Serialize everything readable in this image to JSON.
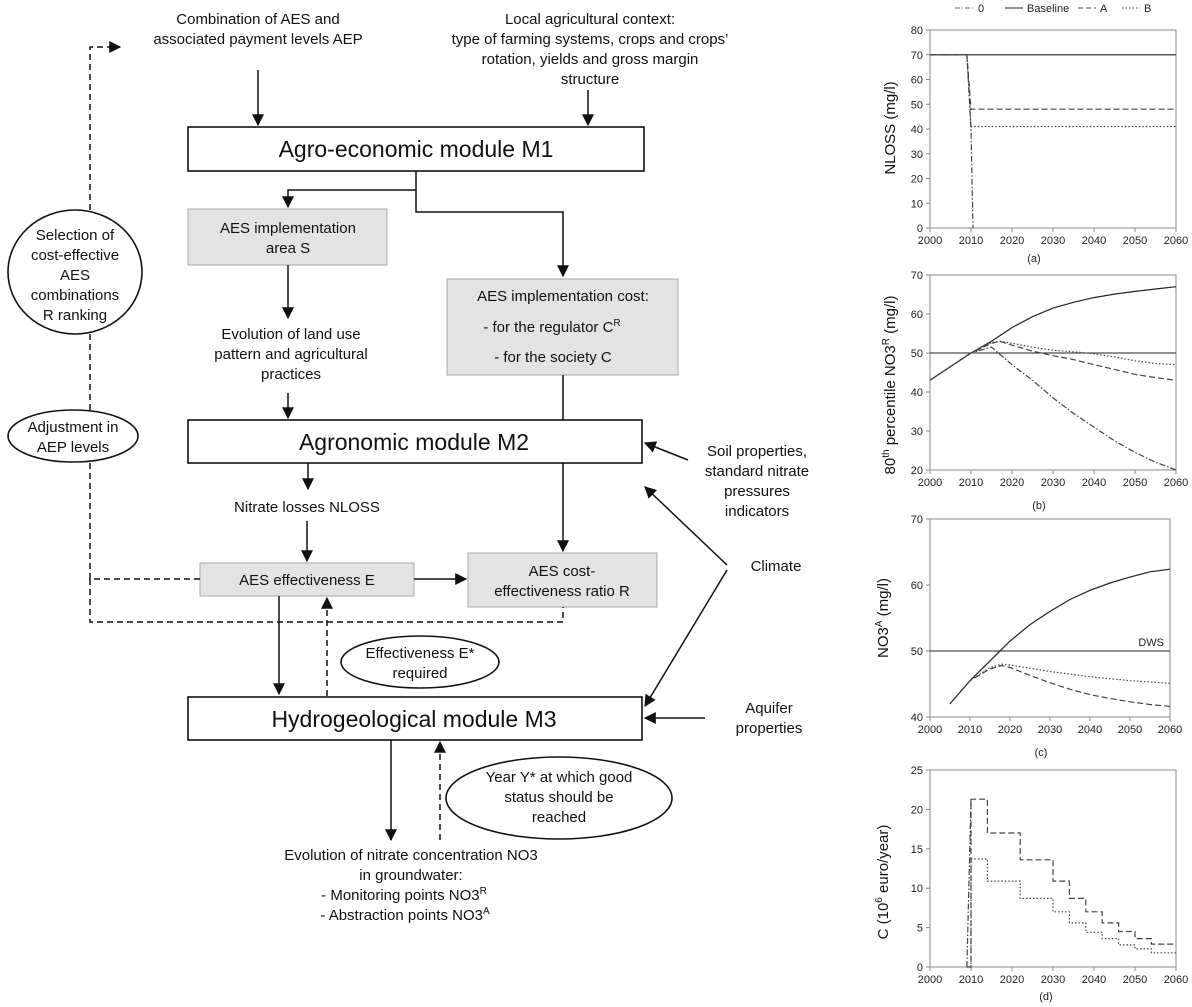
{
  "diagram": {
    "top_inputs": {
      "aes_combination": [
        "Combination of AES and",
        "associated payment levels AEP"
      ],
      "local_context": [
        "Local agricultural context:",
        "type of farming systems, crops and crops’",
        "rotation, yields and gross margin",
        "structure"
      ]
    },
    "modules": {
      "m1": "Agro-economic module M1",
      "m2": "Agronomic module M2",
      "m3": "Hydrogeological module M3"
    },
    "boxes": {
      "impl_area": [
        "AES implementation",
        "area S"
      ],
      "impl_cost_title": "AES implementation cost:",
      "impl_cost_regulator": "- for the regulator C",
      "impl_cost_regulator_sup": "R",
      "impl_cost_society": "- for the society C",
      "effectiveness": "AES effectiveness E",
      "cost_ratio": [
        "AES cost-",
        "effectiveness ratio R"
      ]
    },
    "labels": {
      "land_use": [
        "Evolution of land use",
        "pattern and agricultural",
        "practices"
      ],
      "nitrate_losses": "Nitrate losses NLOSS",
      "soil": [
        "Soil properties,",
        "standard nitrate",
        "pressures",
        "indicators"
      ],
      "climate": "Climate",
      "aquifer": [
        "Aquifer",
        "properties"
      ],
      "evolution_title": [
        "Evolution of nitrate concentration NO3",
        "in groundwater:"
      ],
      "monitoring": "- Monitoring points NO3",
      "monitoring_sup": "R",
      "abstraction": "- Abstraction points NO3",
      "abstraction_sup": "A"
    },
    "ovals": {
      "selection": [
        "Selection of",
        "cost-effective",
        "AES",
        "combinations",
        "R ranking"
      ],
      "adjustment": [
        "Adjustment in",
        "AEP levels"
      ],
      "effectiveness_req": [
        "Effectiveness E*",
        "required"
      ],
      "year": [
        "Year Y* at which good",
        "status should be",
        "reached"
      ]
    }
  },
  "chart_data": [
    {
      "type": "line",
      "panel": "(a)",
      "ylabel": "NLOSS (mg/l)",
      "xlim": [
        2000,
        2060
      ],
      "ylim": [
        0,
        80
      ],
      "xticks": [
        2000,
        2010,
        2020,
        2030,
        2040,
        2050,
        2060
      ],
      "yticks": [
        0,
        10,
        20,
        30,
        40,
        50,
        60,
        70,
        80
      ],
      "legend_position": "top",
      "series": [
        {
          "name": "0",
          "style": "dashdot",
          "x": [
            2000,
            2009,
            2010,
            2010.5
          ],
          "y": [
            70,
            70,
            40,
            0
          ]
        },
        {
          "name": "Baseline",
          "style": "solid",
          "x": [
            2000,
            2060
          ],
          "y": [
            70,
            70
          ]
        },
        {
          "name": "A",
          "style": "dashed",
          "x": [
            2000,
            2009,
            2010,
            2060
          ],
          "y": [
            70,
            70,
            48,
            48
          ]
        },
        {
          "name": "B",
          "style": "dotted",
          "x": [
            2000,
            2009,
            2010,
            2060
          ],
          "y": [
            70,
            70,
            41,
            41
          ]
        }
      ]
    },
    {
      "type": "line",
      "panel": "(b)",
      "ylabel": "80th percentile NO3R (mg/l)",
      "xlim": [
        2000,
        2060
      ],
      "ylim": [
        20,
        70
      ],
      "xticks": [
        2000,
        2010,
        2020,
        2030,
        2040,
        2050,
        2060
      ],
      "yticks": [
        20,
        30,
        40,
        50,
        60,
        70
      ],
      "reference_line": 50,
      "series": [
        {
          "name": "Baseline",
          "style": "solid",
          "x": [
            2000,
            2005,
            2010,
            2015,
            2020,
            2025,
            2030,
            2035,
            2040,
            2045,
            2050,
            2055,
            2060
          ],
          "y": [
            43,
            46.5,
            50,
            53,
            56.5,
            59.3,
            61.5,
            63,
            64.2,
            65.1,
            65.8,
            66.4,
            67
          ]
        },
        {
          "name": "0",
          "style": "dashdot",
          "x": [
            2000,
            2005,
            2010,
            2015,
            2020,
            2025,
            2030,
            2035,
            2040,
            2045,
            2050,
            2055,
            2060
          ],
          "y": [
            43,
            46.5,
            50,
            51.5,
            47,
            43,
            38.5,
            34.5,
            31,
            27.5,
            24.5,
            22,
            20
          ]
        },
        {
          "name": "A",
          "style": "dashed",
          "x": [
            2000,
            2005,
            2010,
            2015,
            2017,
            2020,
            2025,
            2030,
            2035,
            2040,
            2045,
            2050,
            2055,
            2060
          ],
          "y": [
            43,
            46.5,
            50,
            52.5,
            53,
            52,
            50.5,
            49.3,
            48.3,
            47,
            45.8,
            44.5,
            43.7,
            43
          ]
        },
        {
          "name": "B",
          "style": "dotted",
          "x": [
            2000,
            2005,
            2010,
            2015,
            2017,
            2020,
            2025,
            2030,
            2035,
            2040,
            2045,
            2050,
            2055,
            2060
          ],
          "y": [
            43,
            46.5,
            50,
            52.7,
            53,
            52.5,
            51.5,
            50.7,
            50.3,
            49.8,
            49,
            48,
            47.3,
            47
          ]
        }
      ]
    },
    {
      "type": "line",
      "panel": "(c)",
      "ylabel": "NO3A (mg/l)",
      "xlim": [
        2000,
        2060
      ],
      "ylim": [
        40,
        70
      ],
      "xticks": [
        2000,
        2010,
        2020,
        2030,
        2040,
        2050,
        2060
      ],
      "yticks": [
        40,
        50,
        60,
        70
      ],
      "reference_line": 50,
      "reference_label": "DWS",
      "series": [
        {
          "name": "Baseline",
          "style": "solid",
          "x": [
            2005,
            2010,
            2015,
            2020,
            2025,
            2030,
            2035,
            2040,
            2045,
            2050,
            2055,
            2060
          ],
          "y": [
            42,
            45.5,
            48.5,
            51.5,
            54,
            56,
            57.8,
            59.2,
            60.3,
            61.2,
            62,
            62.4
          ]
        },
        {
          "name": "A",
          "style": "dashed",
          "x": [
            2005,
            2010,
            2015,
            2018,
            2020,
            2025,
            2030,
            2035,
            2040,
            2045,
            2050,
            2055,
            2060
          ],
          "y": [
            42,
            45.5,
            47.3,
            47.8,
            47.5,
            46.3,
            45.2,
            44.2,
            43.4,
            42.8,
            42.3,
            41.9,
            41.6
          ]
        },
        {
          "name": "B",
          "style": "dotted",
          "x": [
            2005,
            2010,
            2015,
            2018,
            2020,
            2025,
            2030,
            2035,
            2040,
            2045,
            2050,
            2055,
            2060
          ],
          "y": [
            42,
            45.5,
            47.5,
            48,
            47.9,
            47.4,
            46.9,
            46.5,
            46.1,
            45.8,
            45.5,
            45.3,
            45.1
          ]
        }
      ]
    },
    {
      "type": "line",
      "panel": "(d)",
      "ylabel": "C (10^6 euro/year)",
      "xlim": [
        2000,
        2060
      ],
      "ylim": [
        0,
        25
      ],
      "xticks": [
        2000,
        2010,
        2020,
        2030,
        2040,
        2050,
        2060
      ],
      "yticks": [
        0,
        5,
        10,
        15,
        20,
        25
      ],
      "series": [
        {
          "name": "0",
          "style": "dashdot",
          "x": [
            2009,
            2010
          ],
          "y": [
            0,
            21.3
          ]
        },
        {
          "name": "A",
          "style": "dashed",
          "step": true,
          "x": [
            2009,
            2010,
            2014,
            2018,
            2022,
            2026,
            2030,
            2034,
            2038,
            2042,
            2046,
            2050,
            2054,
            2058,
            2060
          ],
          "y": [
            0,
            21.3,
            17,
            17,
            13.6,
            13.6,
            10.9,
            8.7,
            7,
            5.6,
            4.5,
            3.6,
            2.9,
            2.9,
            2.9
          ]
        },
        {
          "name": "B",
          "style": "dotted",
          "step": true,
          "x": [
            2009,
            2010,
            2014,
            2018,
            2022,
            2026,
            2030,
            2034,
            2038,
            2042,
            2046,
            2050,
            2054,
            2058,
            2060
          ],
          "y": [
            0,
            13.7,
            10.9,
            10.9,
            8.7,
            8.7,
            7,
            5.6,
            4.4,
            3.6,
            2.8,
            2.3,
            1.8,
            1.8,
            1.8
          ]
        }
      ]
    }
  ]
}
